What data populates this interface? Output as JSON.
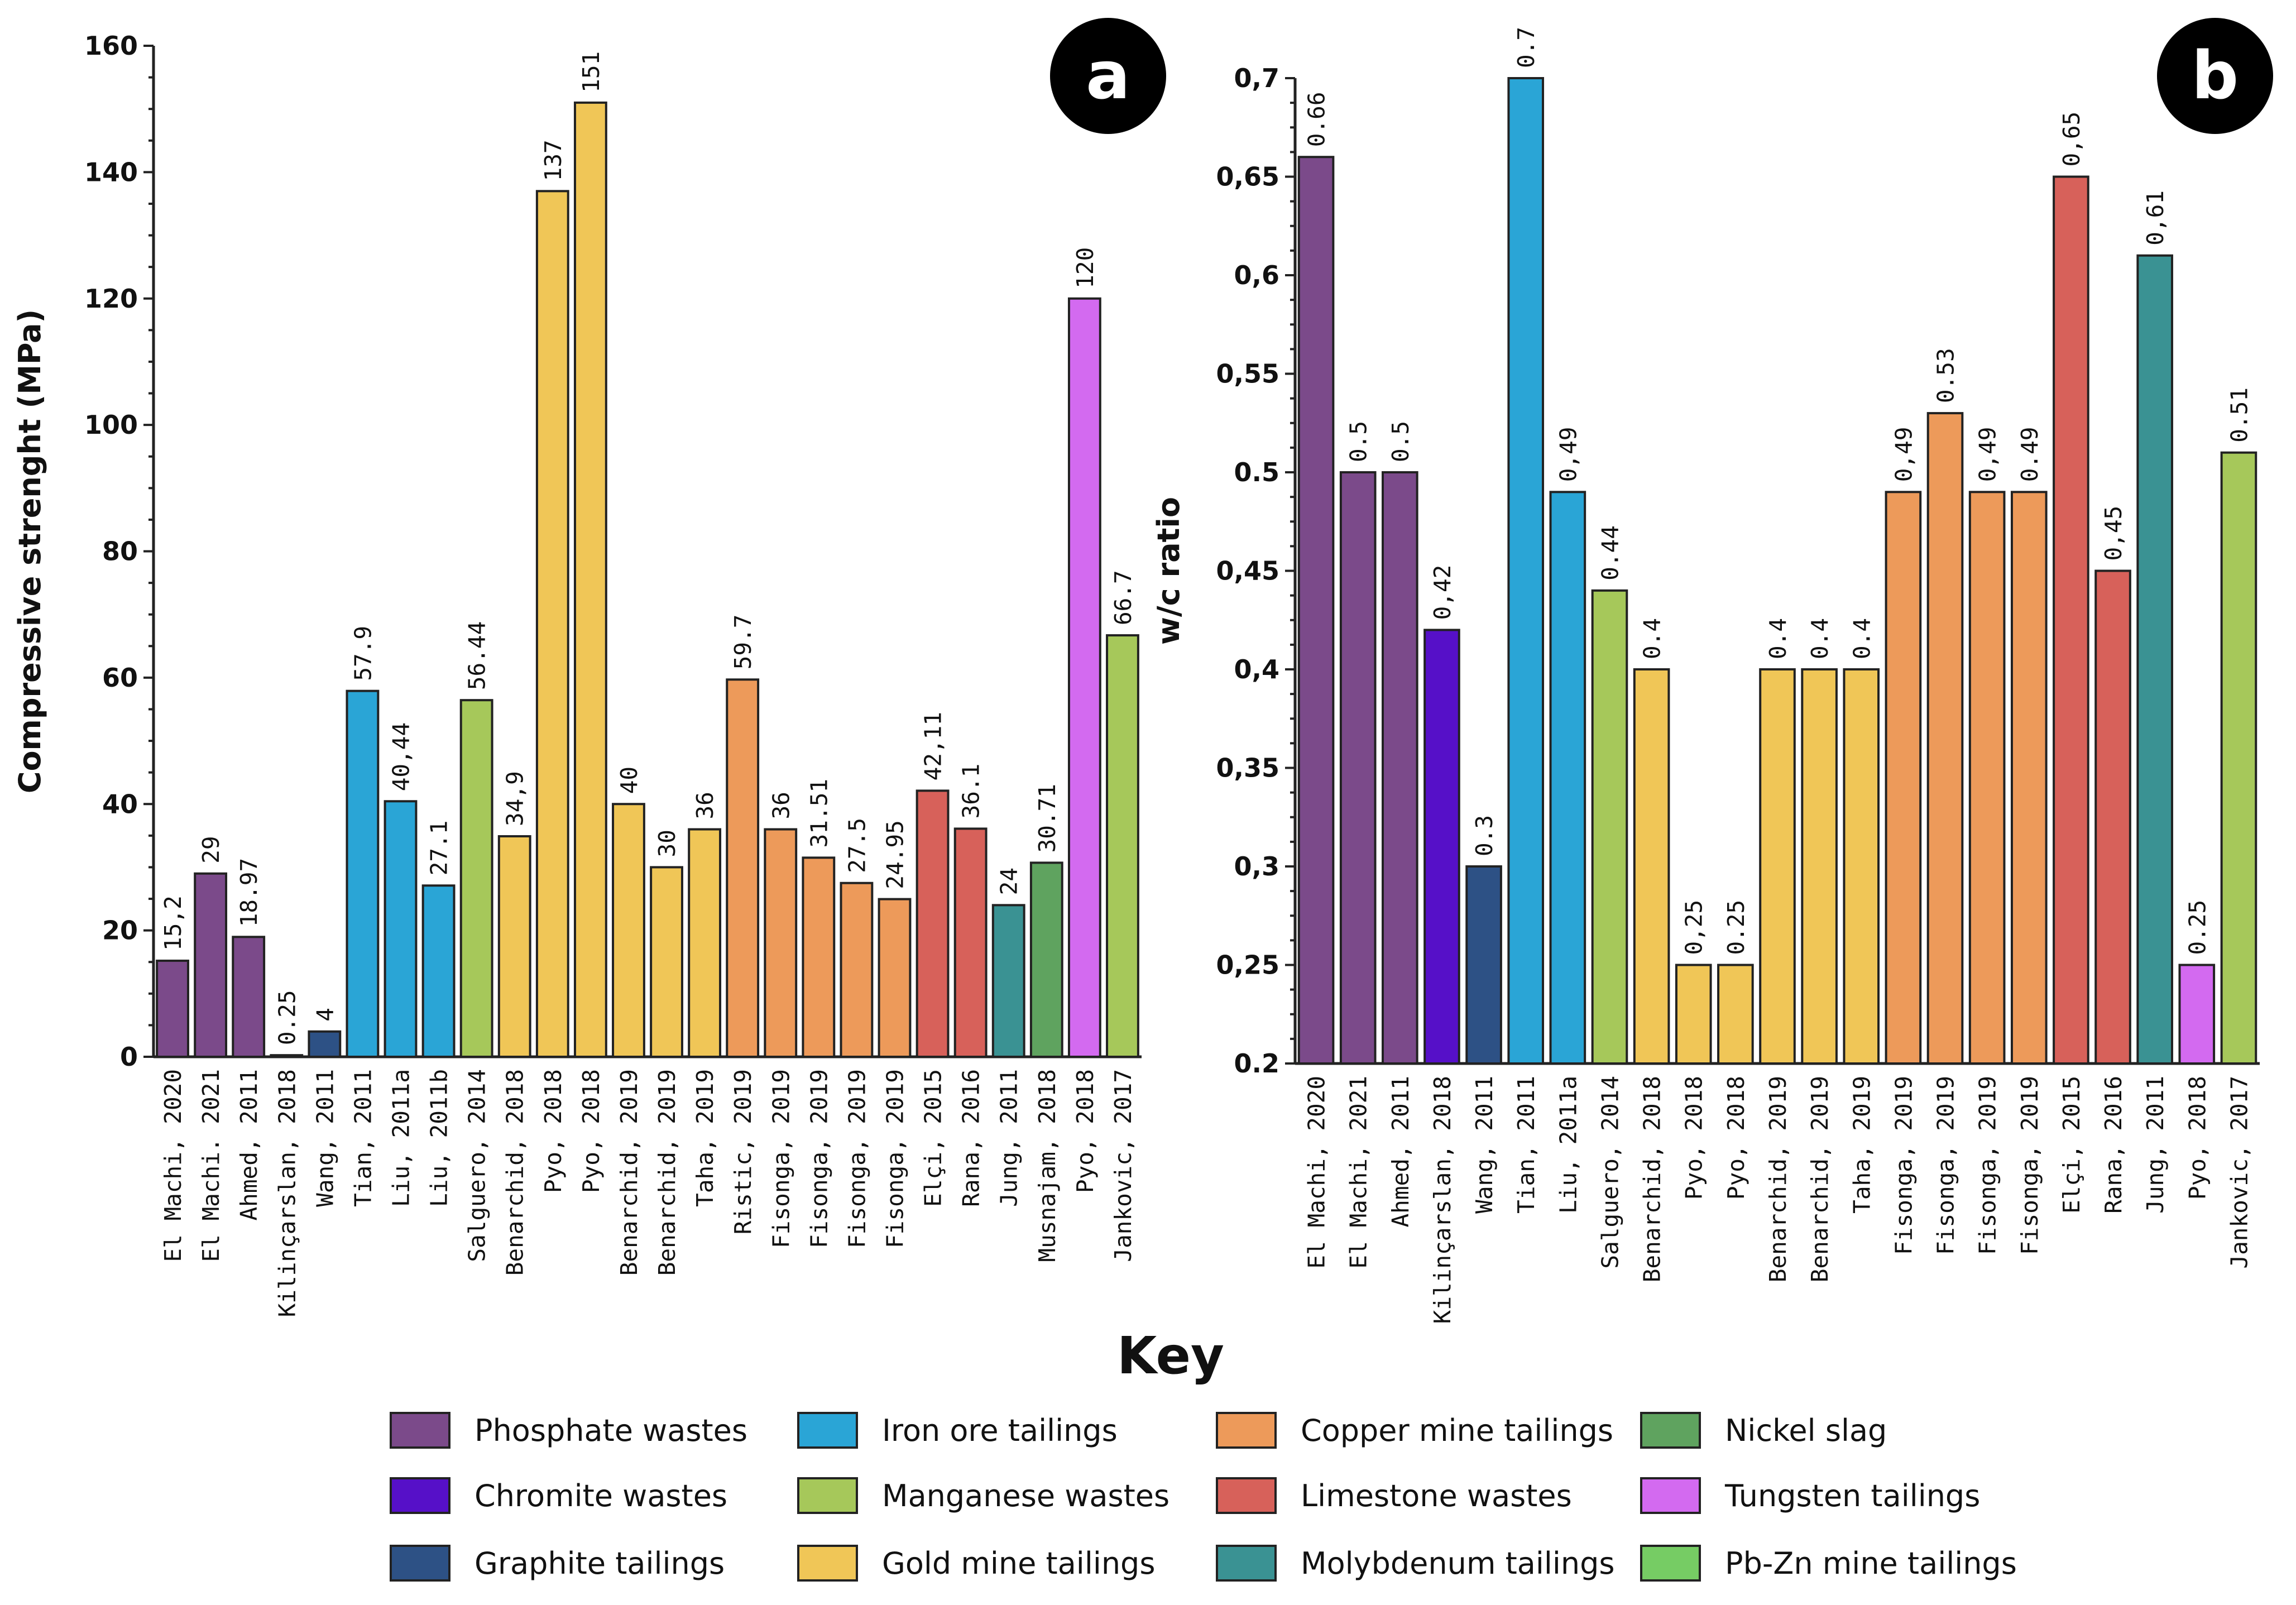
{
  "key_title": "Key",
  "legend": [
    {
      "id": "phosphate",
      "label": "Phosphate wastes",
      "color": "#7b4a8a"
    },
    {
      "id": "chromite",
      "label": "Chromite wastes",
      "color": "#5610c8"
    },
    {
      "id": "graphite",
      "label": "Graphite tailings",
      "color": "#2d5185"
    },
    {
      "id": "iron",
      "label": "Iron ore tailings",
      "color": "#2aa5d6"
    },
    {
      "id": "manganese",
      "label": "Manganese wastes",
      "color": "#a6c85a"
    },
    {
      "id": "gold",
      "label": "Gold mine tailings",
      "color": "#f0c657"
    },
    {
      "id": "copper",
      "label": "Copper mine tailings",
      "color": "#ed9a5a"
    },
    {
      "id": "limestone",
      "label": "Limestone wastes",
      "color": "#d7615a"
    },
    {
      "id": "molybdenum",
      "label": "Molybdenum tailings",
      "color": "#3a9293"
    },
    {
      "id": "nickel",
      "label": "Nickel slag",
      "color": "#5fa35f"
    },
    {
      "id": "tungsten",
      "label": "Tungsten tailings",
      "color": "#d36af0"
    },
    {
      "id": "pbzn",
      "label": "Pb-Zn mine tailings",
      "color": "#76cc64"
    }
  ],
  "chart_data": [
    {
      "type": "bar",
      "panel": "a",
      "title": "",
      "xlabel": "",
      "ylabel": "Compressive strenght (MPa)",
      "ylim": [
        0,
        160
      ],
      "yticks": [
        "0",
        "20",
        "40",
        "60",
        "80",
        "100",
        "120",
        "140",
        "160"
      ],
      "categories": [
        "El Machi, 2020",
        "El Machi. 2021",
        "Ahmed, 2011",
        "Kilinçarslan, 2018",
        "Wang, 2011",
        "Tian, 2011",
        "Liu, 2011a",
        "Liu, 2011b",
        "Salguero, 2014",
        "Benarchid, 2018",
        "Pyo, 2018",
        "Pyo, 2018",
        "Benarchid, 2019",
        "Benarchid, 2019",
        "Taha, 2019",
        "Ristic, 2019",
        "Fisonga, 2019",
        "Fisonga, 2019",
        "Fisonga, 2019",
        "Fisonga, 2019",
        "Elçi, 2015",
        "Rana, 2016",
        "Jung, 2011",
        "Musnajam, 2018",
        "Pyo, 2018",
        "Jankovic, 2017"
      ],
      "values": [
        15.2,
        29,
        18.97,
        0.25,
        4,
        57.9,
        40.44,
        27.1,
        56.44,
        34.9,
        137,
        151,
        40,
        30,
        36,
        59.7,
        36,
        31.51,
        27.5,
        24.95,
        42.11,
        36.1,
        24,
        30.71,
        120,
        66.7
      ],
      "value_labels": [
        "15,2",
        "29",
        "18.97",
        "0.25",
        "4",
        "57.9",
        "40,44",
        "27.1",
        "56.44",
        "34,9",
        "137",
        "151",
        "40",
        "30",
        "36",
        "59.7",
        "36",
        "31.51",
        "27.5",
        "24.95",
        "42,11",
        "36.1",
        "24",
        "30.71",
        "120",
        "66.7"
      ],
      "groups": [
        "phosphate",
        "phosphate",
        "phosphate",
        "chromite",
        "graphite",
        "iron",
        "iron",
        "iron",
        "manganese",
        "gold",
        "gold",
        "gold",
        "gold",
        "gold",
        "gold",
        "copper",
        "copper",
        "copper",
        "copper",
        "copper",
        "limestone",
        "limestone",
        "molybdenum",
        "nickel",
        "tungsten",
        "manganese"
      ]
    },
    {
      "type": "bar",
      "panel": "b",
      "title": "",
      "xlabel": "",
      "ylabel": "w/c ratio",
      "ylim": [
        0.2,
        0.7
      ],
      "yticks": [
        "0.2",
        "0,25",
        "0,3",
        "0,35",
        "0,4",
        "0,45",
        "0.5",
        "0,55",
        "0,6",
        "0,65",
        "0,7"
      ],
      "categories": [
        "El Machi, 2020",
        "El Machi, 2021",
        "Ahmed, 2011",
        "Kilinçarslan, 2018",
        "Wang, 2011",
        "Tian, 2011",
        "Liu, 2011a",
        "Salguero, 2014",
        "Benarchid, 2018",
        "Pyo, 2018",
        "Pyo, 2018",
        "Benarchid, 2019",
        "Benarchid, 2019",
        "Taha, 2019",
        "Fisonga, 2019",
        "Fisonga, 2019",
        "Fisonga, 2019",
        "Fisonga, 2019",
        "Elçi, 2015",
        "Rana, 2016",
        "Jung, 2011",
        "Pyo, 2018",
        "Jankovic, 2017"
      ],
      "values": [
        0.66,
        0.5,
        0.5,
        0.42,
        0.3,
        0.7,
        0.49,
        0.44,
        0.4,
        0.25,
        0.25,
        0.4,
        0.4,
        0.4,
        0.49,
        0.53,
        0.49,
        0.49,
        0.65,
        0.45,
        0.61,
        0.25,
        0.51
      ],
      "value_labels": [
        "0.66",
        "0.5",
        "0.5",
        "0,42",
        "0.3",
        "0.7",
        "0,49",
        "0.44",
        "0.4",
        "0,25",
        "0.25",
        "0.4",
        "0.4",
        "0.4",
        "0,49",
        "0.53",
        "0,49",
        "0.49",
        "0,65",
        "0,45",
        "0,61",
        "0.25",
        "0.51"
      ],
      "groups": [
        "phosphate",
        "phosphate",
        "phosphate",
        "chromite",
        "graphite",
        "iron",
        "iron",
        "manganese",
        "gold",
        "gold",
        "gold",
        "gold",
        "gold",
        "gold",
        "copper",
        "copper",
        "copper",
        "copper",
        "limestone",
        "limestone",
        "molybdenum",
        "tungsten",
        "manganese"
      ]
    }
  ]
}
